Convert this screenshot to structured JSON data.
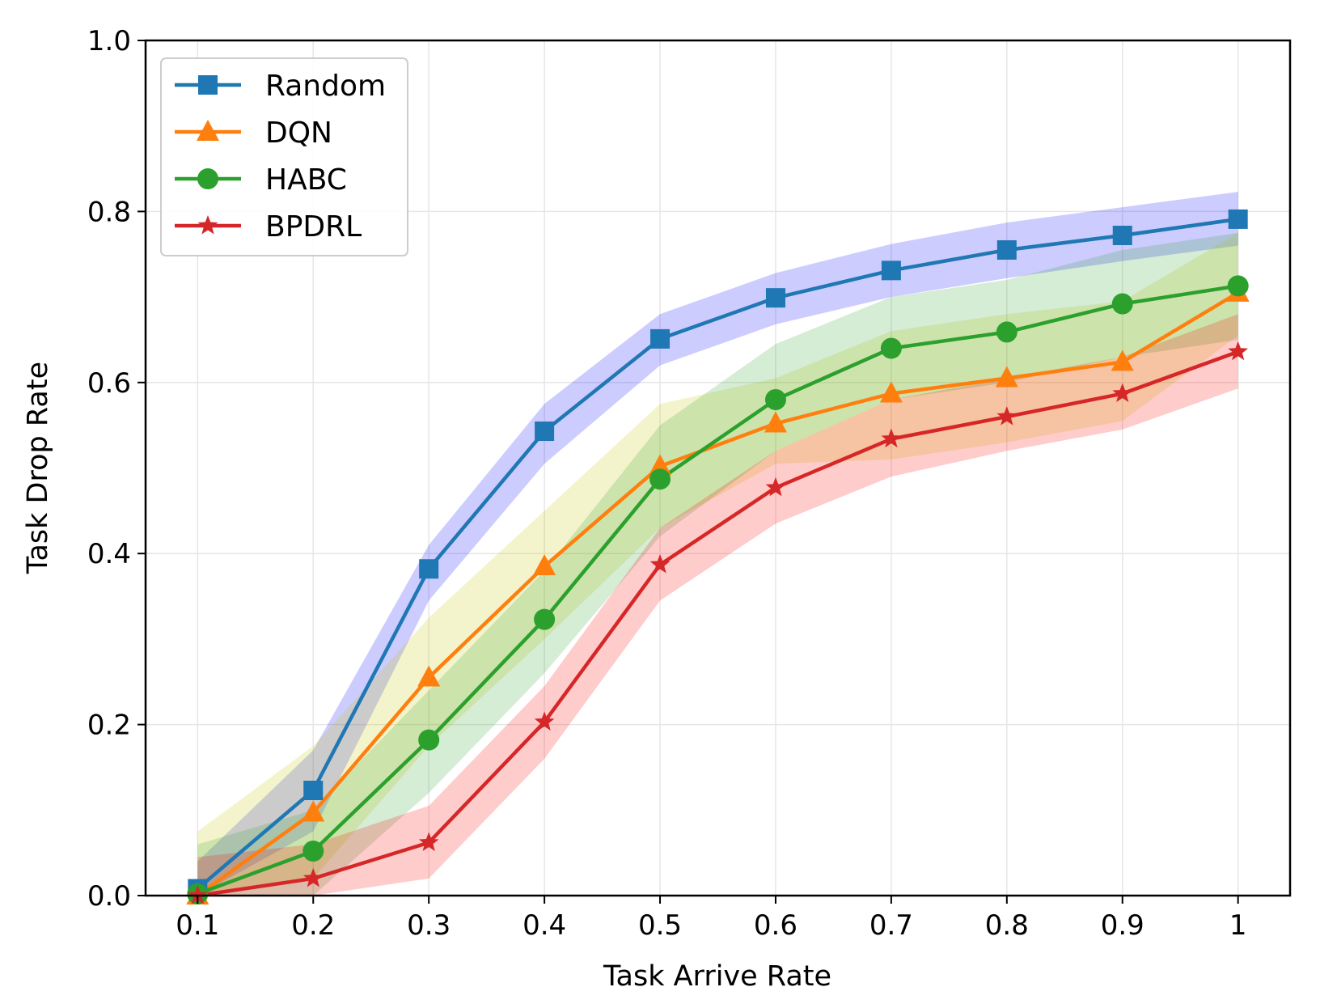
{
  "chart_data": {
    "type": "line",
    "title": "",
    "xlabel": "Task Arrive Rate",
    "ylabel": "Task Drop Rate",
    "x": [
      0.1,
      0.2,
      0.3,
      0.4,
      0.5,
      0.6,
      0.7,
      0.8,
      0.9,
      1
    ],
    "x_tick_labels": [
      "0.1",
      "0.2",
      "0.3",
      "0.4",
      "0.5",
      "0.6",
      "0.7",
      "0.8",
      "0.9",
      "1"
    ],
    "y_ticks": [
      0.0,
      0.2,
      0.4,
      0.6,
      0.8,
      1.0
    ],
    "y_tick_labels": [
      "0.0",
      "0.2",
      "0.4",
      "0.6",
      "0.8",
      "1.0"
    ],
    "xlim": [
      0.055,
      1.045
    ],
    "ylim": [
      0.0,
      1.0
    ],
    "grid": true,
    "legend_position": "upper-left",
    "series": [
      {
        "name": "Random",
        "color": "#1f77b4",
        "band_color": "#0000ff",
        "marker": "square",
        "values": [
          0.008,
          0.123,
          0.382,
          0.543,
          0.651,
          0.699,
          0.731,
          0.755,
          0.772,
          0.791
        ],
        "lower": [
          0.0,
          0.075,
          0.345,
          0.505,
          0.62,
          0.668,
          0.7,
          0.722,
          0.742,
          0.76
        ],
        "upper": [
          0.04,
          0.17,
          0.41,
          0.575,
          0.68,
          0.728,
          0.762,
          0.787,
          0.805,
          0.823
        ]
      },
      {
        "name": "DQN",
        "color": "#ff7f0e",
        "band_color": "#c8c800",
        "marker": "triangle",
        "values": [
          0.0,
          0.097,
          0.255,
          0.385,
          0.502,
          0.552,
          0.587,
          0.605,
          0.624,
          0.705
        ],
        "lower": [
          0.0,
          0.02,
          0.175,
          0.3,
          0.43,
          0.505,
          0.51,
          0.53,
          0.555,
          0.655
        ],
        "upper": [
          0.075,
          0.175,
          0.325,
          0.45,
          0.575,
          0.605,
          0.66,
          0.68,
          0.695,
          0.775
        ]
      },
      {
        "name": "HABC",
        "color": "#2ca02c",
        "band_color": "#2ca02c",
        "marker": "circle",
        "values": [
          0.002,
          0.052,
          0.182,
          0.323,
          0.487,
          0.58,
          0.64,
          0.659,
          0.692,
          0.713
        ],
        "lower": [
          0.0,
          0.0,
          0.12,
          0.26,
          0.42,
          0.52,
          0.58,
          0.6,
          0.63,
          0.65
        ],
        "upper": [
          0.06,
          0.1,
          0.24,
          0.38,
          0.55,
          0.645,
          0.7,
          0.72,
          0.755,
          0.775
        ]
      },
      {
        "name": "BPDRL",
        "color": "#d62728",
        "band_color": "#ff0000",
        "marker": "star",
        "values": [
          0.0,
          0.02,
          0.062,
          0.203,
          0.387,
          0.477,
          0.534,
          0.56,
          0.587,
          0.636
        ],
        "lower": [
          0.0,
          0.0,
          0.02,
          0.16,
          0.345,
          0.435,
          0.49,
          0.52,
          0.545,
          0.593
        ],
        "upper": [
          0.045,
          0.06,
          0.105,
          0.245,
          0.43,
          0.52,
          0.58,
          0.605,
          0.63,
          0.68
        ]
      }
    ]
  }
}
